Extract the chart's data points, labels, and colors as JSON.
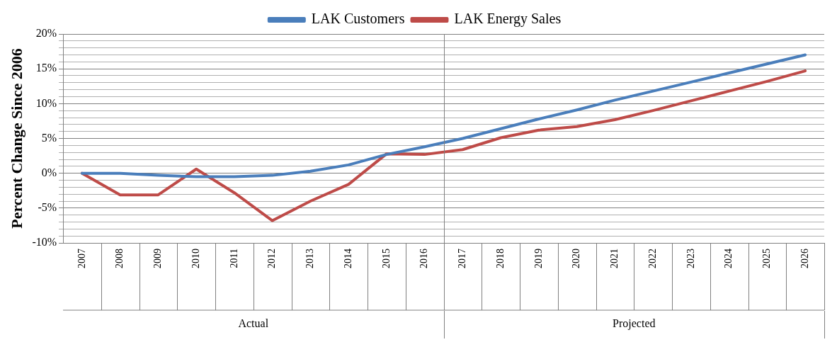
{
  "chart_data": {
    "type": "line",
    "ylabel": "Percent Change Since 2006",
    "categories": [
      "2007",
      "2008",
      "2009",
      "2010",
      "2011",
      "2012",
      "2013",
      "2014",
      "2015",
      "2016",
      "2017",
      "2018",
      "2019",
      "2020",
      "2021",
      "2022",
      "2023",
      "2024",
      "2025",
      "2026"
    ],
    "series": [
      {
        "name": "LAK Customers",
        "color": "#4a7ebb",
        "values": [
          0,
          0,
          -0.3,
          -0.5,
          -0.5,
          -0.3,
          0.3,
          1.2,
          2.7,
          3.8,
          5.0,
          6.4,
          7.8,
          9.1,
          10.5,
          11.8,
          13.1,
          14.4,
          15.7,
          17.0
        ]
      },
      {
        "name": "LAK Energy Sales",
        "color": "#be4b48",
        "values": [
          0,
          -3.1,
          -3.1,
          0.6,
          -2.8,
          -6.8,
          -4.0,
          -1.6,
          2.8,
          2.7,
          3.4,
          5.1,
          6.2,
          6.7,
          7.7,
          9.0,
          10.4,
          11.8,
          13.2,
          14.7
        ]
      }
    ],
    "ylim": [
      -10,
      20
    ],
    "yticks": [
      {
        "value": -10,
        "label": "-10%"
      },
      {
        "value": -9,
        "label": null
      },
      {
        "value": -8,
        "label": null
      },
      {
        "value": -7,
        "label": null
      },
      {
        "value": -6,
        "label": null
      },
      {
        "value": -5,
        "label": "-5%"
      },
      {
        "value": -4,
        "label": null
      },
      {
        "value": -3,
        "label": null
      },
      {
        "value": -2,
        "label": null
      },
      {
        "value": -1,
        "label": null
      },
      {
        "value": 0,
        "label": "0%"
      },
      {
        "value": 1,
        "label": null
      },
      {
        "value": 2,
        "label": null
      },
      {
        "value": 3,
        "label": null
      },
      {
        "value": 4,
        "label": null
      },
      {
        "value": 5,
        "label": "5%"
      },
      {
        "value": 6,
        "label": null
      },
      {
        "value": 7,
        "label": null
      },
      {
        "value": 8,
        "label": null
      },
      {
        "value": 9,
        "label": null
      },
      {
        "value": 10,
        "label": "10%"
      },
      {
        "value": 11,
        "label": null
      },
      {
        "value": 12,
        "label": null
      },
      {
        "value": 13,
        "label": null
      },
      {
        "value": 14,
        "label": null
      },
      {
        "value": 15,
        "label": "15%"
      },
      {
        "value": 16,
        "label": null
      },
      {
        "value": 17,
        "label": null
      },
      {
        "value": 18,
        "label": null
      },
      {
        "value": 19,
        "label": null
      },
      {
        "value": 20,
        "label": "20%"
      }
    ],
    "annotations": [
      "Actual",
      "Projected"
    ],
    "grid": "y",
    "legend": "top",
    "marker": "none",
    "line_style": "solid"
  }
}
